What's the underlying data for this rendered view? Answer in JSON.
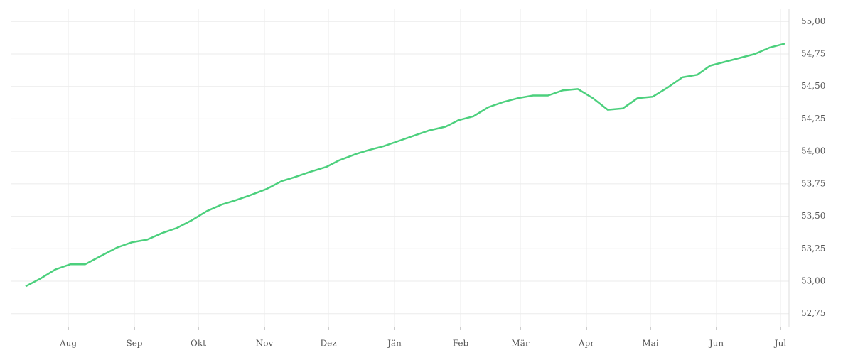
{
  "chart_data": {
    "type": "line",
    "x": [
      -20,
      -13,
      -6,
      1,
      8,
      16,
      23,
      30,
      37,
      44,
      51,
      58,
      65,
      72,
      78,
      85,
      93,
      100,
      106,
      113,
      121,
      127,
      135,
      141,
      148,
      155,
      162,
      169,
      177,
      183,
      190,
      197,
      204,
      211,
      218,
      225,
      232,
      239,
      246,
      253,
      260,
      267,
      274,
      281,
      288,
      295,
      301,
      308,
      315,
      322,
      329,
      336
    ],
    "values": [
      52.96,
      53.02,
      53.09,
      53.13,
      53.13,
      53.2,
      53.26,
      53.3,
      53.32,
      53.37,
      53.41,
      53.47,
      53.54,
      53.59,
      53.62,
      53.66,
      53.71,
      53.77,
      53.8,
      53.84,
      53.88,
      53.93,
      53.98,
      54.01,
      54.04,
      54.08,
      54.12,
      54.16,
      54.19,
      54.24,
      54.27,
      54.34,
      54.38,
      54.41,
      54.43,
      54.43,
      54.47,
      54.48,
      54.41,
      54.32,
      54.33,
      54.41,
      54.42,
      54.49,
      54.57,
      54.59,
      54.66,
      54.69,
      54.72,
      54.75,
      54.8,
      54.83
    ],
    "color": "#4cd07d",
    "xlim": [
      -27,
      338
    ],
    "xticks": [
      {
        "value": 0,
        "label": "Aug"
      },
      {
        "value": 31,
        "label": "Sep"
      },
      {
        "value": 61,
        "label": "Okt"
      },
      {
        "value": 92,
        "label": "Nov"
      },
      {
        "value": 122,
        "label": "Dez"
      },
      {
        "value": 153,
        "label": "Jän"
      },
      {
        "value": 184,
        "label": "Feb"
      },
      {
        "value": 212,
        "label": "Mär"
      },
      {
        "value": 243,
        "label": "Apr"
      },
      {
        "value": 273,
        "label": "Mai"
      },
      {
        "value": 304,
        "label": "Jun"
      },
      {
        "value": 334,
        "label": "Jul"
      }
    ],
    "ylim": [
      52.65,
      55.1
    ],
    "yticks": [
      {
        "value": 52.75,
        "label": "52,75"
      },
      {
        "value": 53,
        "label": "53,00"
      },
      {
        "value": 53.25,
        "label": "53,25"
      },
      {
        "value": 53.5,
        "label": "53,50"
      },
      {
        "value": 53.75,
        "label": "53,75"
      },
      {
        "value": 54,
        "label": "54,00"
      },
      {
        "value": 54.25,
        "label": "54,25"
      },
      {
        "value": 54.5,
        "label": "54,50"
      },
      {
        "value": 54.75,
        "label": "54,75"
      },
      {
        "value": 55,
        "label": "55,00"
      }
    ],
    "grid": true
  }
}
